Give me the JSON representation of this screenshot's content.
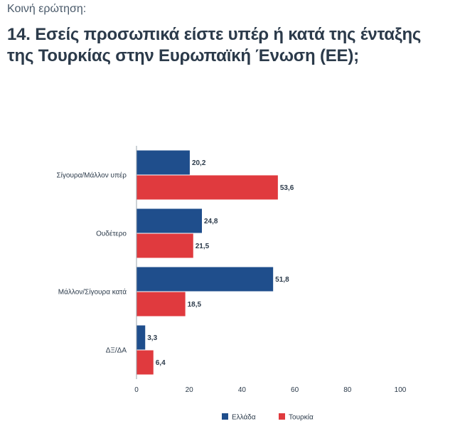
{
  "header": {
    "kicker": "Κοινή ερώτηση:",
    "title": "14. Εσείς προσωπικά είστε υπέρ ή κατά της ένταξης της Τουρκίας στην Ευρωπαϊκή Ένωση (ΕΕ);"
  },
  "chart_data": {
    "type": "bar",
    "orientation": "horizontal",
    "categories": [
      "Σίγουρα/Μάλλον υπέρ",
      "Ουδέτερο",
      "Μάλλον/Σίγουρα κατά",
      "ΔΞ/ΔΑ"
    ],
    "series": [
      {
        "name": "Ελλάδα",
        "values": [
          20.2,
          24.8,
          51.8,
          3.3
        ],
        "labels": [
          "20,2",
          "24,8",
          "51,8",
          "3,3"
        ],
        "color": "#1f4e8c"
      },
      {
        "name": "Τουρκία",
        "values": [
          53.6,
          21.5,
          18.5,
          6.4
        ],
        "labels": [
          "53,6",
          "21,5",
          "18,5",
          "6,4"
        ],
        "color": "#e03a3e"
      }
    ],
    "xlim": [
      0,
      100
    ],
    "xticks": [
      "0",
      "20",
      "40",
      "60",
      "80",
      "100"
    ],
    "grid": false,
    "legend": "bottom-center"
  }
}
